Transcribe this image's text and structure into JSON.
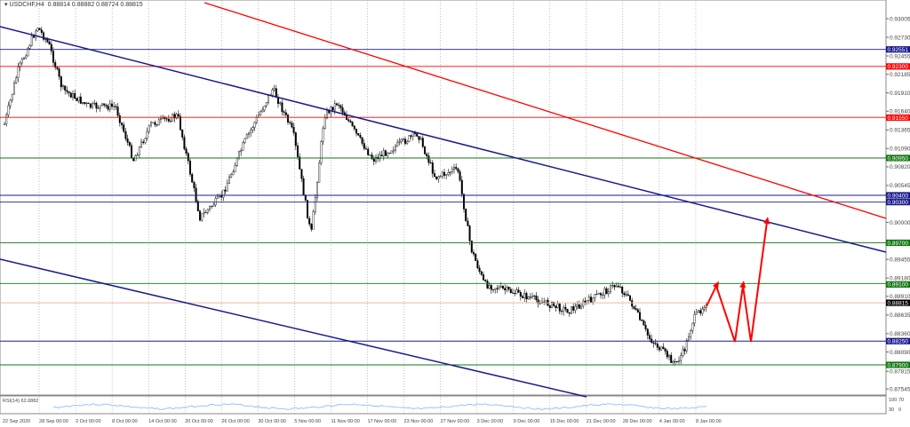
{
  "header": {
    "symbol": "USDCHF,H4",
    "ohlc": "0.88814 0.88882 0.88724 0.88815"
  },
  "rsi": {
    "label": "RSI(14) 62.0882",
    "scale": [
      "100",
      "70",
      "30",
      "0"
    ],
    "value": 62.0882
  },
  "price_axis": {
    "ticks": [
      "0.93005",
      "0.92730",
      "0.92455",
      "0.92185",
      "0.91910",
      "0.91640",
      "0.91365",
      "0.91090",
      "0.90820",
      "0.90545",
      "0.90000",
      "0.89455",
      "0.89180",
      "0.88910",
      "0.88635",
      "0.88360",
      "0.88090",
      "0.87815",
      "0.87545"
    ]
  },
  "time_axis": [
    "22 Sep 2020",
    "28 Sep 00:00",
    "2 Oct 00:00",
    "8 Oct 00:00",
    "14 Oct 00:00",
    "20 Oct 00:00",
    "26 Oct 00:00",
    "30 Oct 00:00",
    "5 Nov 00:00",
    "11 Nov 00:00",
    "17 Nov 00:00",
    "23 Nov 00:00",
    "27 Nov 00:00",
    "3 Dec 00:00",
    "9 Dec 00:00",
    "15 Dec 00:00",
    "21 Dec 00:00",
    "28 Dec 00:00",
    "4 Jan 00:00",
    "8 Jan 00:00"
  ],
  "levels": [
    {
      "price": "0.92551",
      "color": "#1a1a8c"
    },
    {
      "price": "0.92300",
      "color": "#ff0000"
    },
    {
      "price": "0.91550",
      "color": "#ff0000"
    },
    {
      "price": "0.90950",
      "color": "#117711"
    },
    {
      "price": "0.90400",
      "color": "#1a1a8c"
    },
    {
      "price": "0.90300",
      "color": "#1a1a8c"
    },
    {
      "price": "0.89700",
      "color": "#117711"
    },
    {
      "price": "0.89100",
      "color": "#117711"
    },
    {
      "price": "0.88815",
      "color": "#000000",
      "current": true
    },
    {
      "price": "0.88250",
      "color": "#1a1a8c"
    },
    {
      "price": "0.87900",
      "color": "#117711"
    }
  ],
  "colors": {
    "bull": "#000000",
    "rsi": "#7fb8ff",
    "arrow": "#ff0000",
    "channel_blue": "#1a1a8c",
    "channel_red": "#ff0000"
  }
}
